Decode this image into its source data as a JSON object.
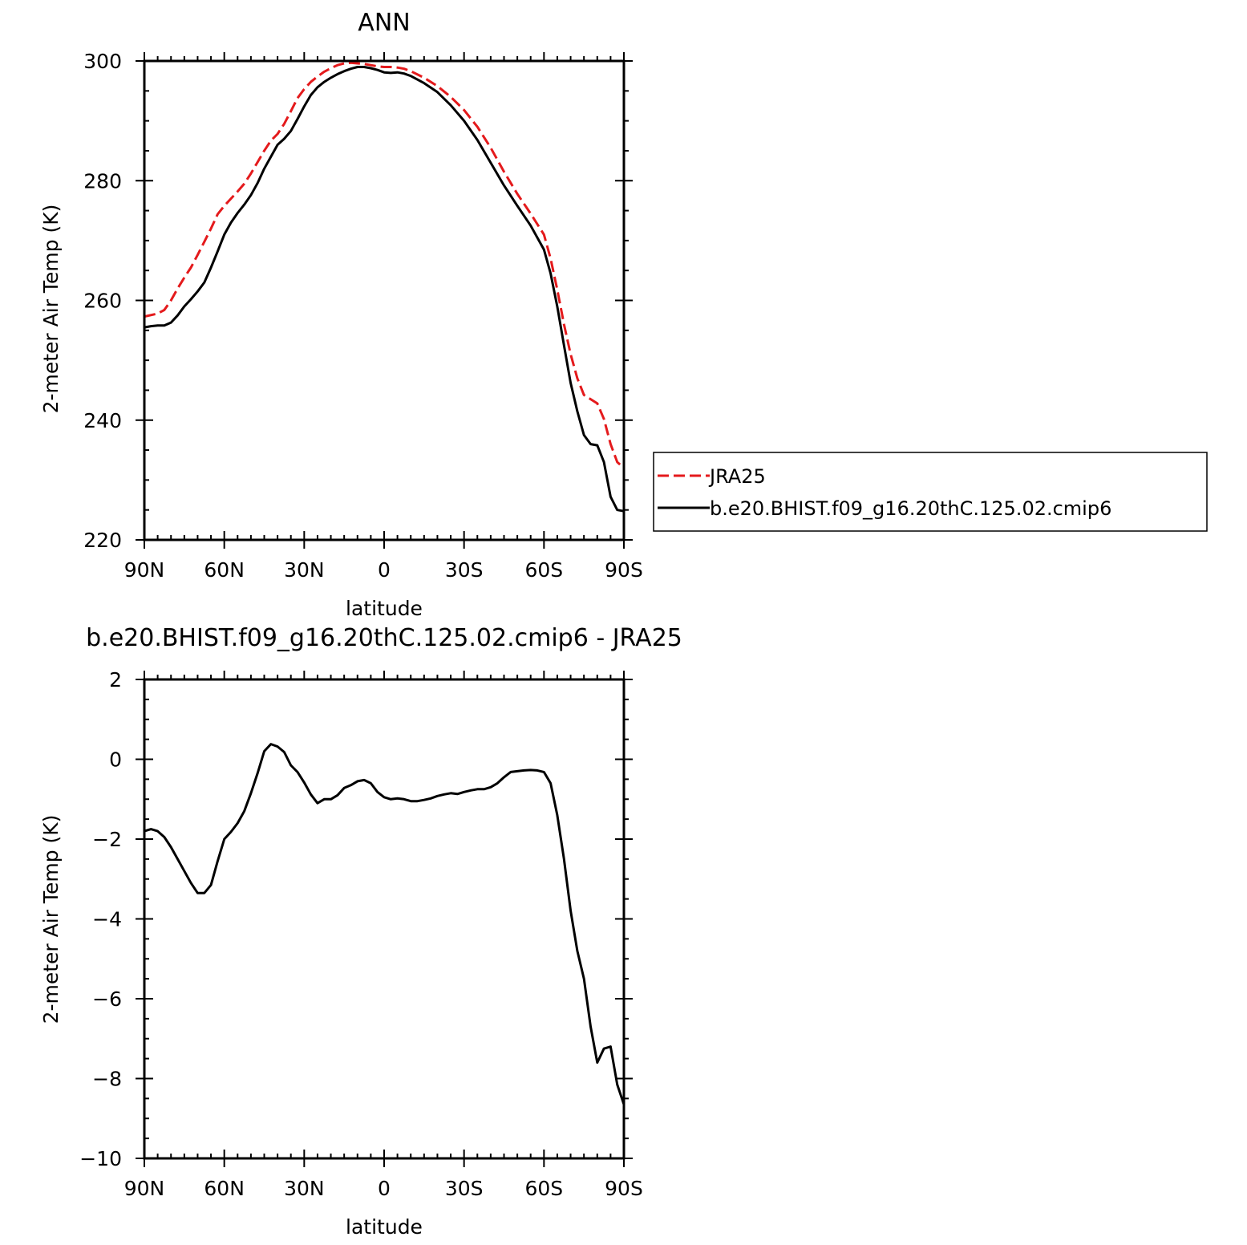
{
  "chart_data": [
    {
      "type": "line",
      "title": "ANN",
      "xlabel": "latitude",
      "ylabel": "2-meter Air Temp (K)",
      "xlim": [
        -90,
        90
      ],
      "ylim": [
        220,
        300
      ],
      "x_direction": "90N to 90S",
      "x_ticks": [
        {
          "value": -90,
          "label": "90N"
        },
        {
          "value": -60,
          "label": "60N"
        },
        {
          "value": -30,
          "label": "30N"
        },
        {
          "value": 0,
          "label": "0"
        },
        {
          "value": 30,
          "label": "30S"
        },
        {
          "value": 60,
          "label": "60S"
        },
        {
          "value": 90,
          "label": "90S"
        }
      ],
      "y_ticks": [
        220,
        240,
        260,
        280,
        300
      ],
      "legend_position": "right",
      "grid": false,
      "series": [
        {
          "name": "JRA25",
          "color": "#e41a1c",
          "dash": "dashed",
          "x": [
            -90,
            -85,
            -82.5,
            -80,
            -77.5,
            -75,
            -72.5,
            -70,
            -67.5,
            -65,
            -62.5,
            -60,
            -57.5,
            -55,
            -52.5,
            -50,
            -47.5,
            -45,
            -42.5,
            -40,
            -37.5,
            -35,
            -32.5,
            -30,
            -27.5,
            -25,
            -22.5,
            -20,
            -17.5,
            -15,
            -12.5,
            -10,
            -7.5,
            -5,
            -2.5,
            0,
            2.5,
            5,
            7.5,
            10,
            15,
            20,
            25,
            30,
            35,
            40,
            45,
            50,
            55,
            60,
            62.5,
            65,
            67.5,
            70,
            72.5,
            75,
            77.5,
            80,
            82.5,
            85,
            87.5,
            90
          ],
          "values": [
            257.3,
            257.8,
            258.4,
            260.0,
            262.0,
            263.8,
            265.5,
            267.6,
            269.8,
            272.0,
            274.4,
            275.8,
            277.0,
            278.2,
            279.5,
            281.2,
            283.1,
            285.0,
            286.7,
            287.8,
            289.5,
            291.6,
            293.8,
            295.3,
            296.5,
            297.4,
            298.2,
            298.8,
            299.3,
            299.6,
            299.7,
            299.6,
            299.5,
            299.3,
            299.1,
            299.0,
            299.0,
            298.9,
            298.7,
            298.3,
            297.2,
            295.8,
            294.0,
            291.8,
            289.0,
            285.5,
            281.5,
            277.8,
            274.5,
            271.0,
            267.0,
            261.8,
            256.0,
            251.0,
            247.0,
            244.2,
            243.5,
            242.8,
            240.2,
            236.0,
            233.0,
            232.0
          ]
        },
        {
          "name": "b.e20.BHIST.f09_g16.20thC.125.02.cmip6",
          "color": "#000000",
          "dash": "solid",
          "x": [
            -90,
            -87.5,
            -85,
            -82.5,
            -80,
            -77.5,
            -75,
            -72.5,
            -70,
            -67.5,
            -65,
            -62.5,
            -60,
            -57.5,
            -55,
            -52.5,
            -50,
            -47.5,
            -45,
            -42.5,
            -40,
            -37.5,
            -35,
            -32.5,
            -30,
            -27.5,
            -25,
            -22.5,
            -20,
            -17.5,
            -15,
            -12.5,
            -10,
            -7.5,
            -5,
            -2.5,
            0,
            2.5,
            5,
            7.5,
            10,
            15,
            20,
            25,
            30,
            35,
            40,
            45,
            50,
            55,
            60,
            62.5,
            65,
            67.5,
            70,
            72.5,
            75,
            77.5,
            80,
            82.5,
            85,
            87.5,
            90
          ],
          "values": [
            255.5,
            255.7,
            255.8,
            255.8,
            256.3,
            257.5,
            259.0,
            260.2,
            261.5,
            263.0,
            265.5,
            268.2,
            271.0,
            273.0,
            274.6,
            276.0,
            277.6,
            279.6,
            282.0,
            284.0,
            286.0,
            287.0,
            288.3,
            290.3,
            292.4,
            294.3,
            295.6,
            296.5,
            297.2,
            297.8,
            298.3,
            298.7,
            299.0,
            299.0,
            298.8,
            298.5,
            298.1,
            298.0,
            298.1,
            297.9,
            297.5,
            296.3,
            294.8,
            292.6,
            290.0,
            286.8,
            283.0,
            279.2,
            275.8,
            272.5,
            268.5,
            264.5,
            259.0,
            252.5,
            246.2,
            241.5,
            237.5,
            236.0,
            235.8,
            233.0,
            227.2,
            225.0,
            224.8
          ]
        }
      ]
    },
    {
      "type": "line",
      "title": "b.e20.BHIST.f09_g16.20thC.125.02.cmip6 - JRA25",
      "xlabel": "latitude",
      "ylabel": "2-meter Air Temp (K)",
      "xlim": [
        -90,
        90
      ],
      "ylim": [
        -10,
        2
      ],
      "x_direction": "90N to 90S",
      "x_ticks": [
        {
          "value": -90,
          "label": "90N"
        },
        {
          "value": -60,
          "label": "60N"
        },
        {
          "value": -30,
          "label": "30N"
        },
        {
          "value": 0,
          "label": "0"
        },
        {
          "value": 30,
          "label": "30S"
        },
        {
          "value": 60,
          "label": "60S"
        },
        {
          "value": 90,
          "label": "90S"
        }
      ],
      "y_ticks": [
        -10,
        -8,
        -6,
        -4,
        -2,
        0,
        2
      ],
      "grid": false,
      "series": [
        {
          "color": "#000000",
          "dash": "solid",
          "x": [
            -90,
            -87.5,
            -85,
            -82.5,
            -80,
            -77.5,
            -75,
            -72.5,
            -70,
            -67.5,
            -65,
            -62.5,
            -60,
            -57.5,
            -55,
            -52.5,
            -50,
            -47.5,
            -45,
            -42.5,
            -40,
            -37.5,
            -35,
            -32.5,
            -30,
            -27.5,
            -25,
            -22.5,
            -20,
            -17.5,
            -15,
            -12.5,
            -10,
            -7.5,
            -5,
            -2.5,
            0,
            2.5,
            5,
            7.5,
            10,
            12.5,
            15,
            17.5,
            20,
            22.5,
            25,
            27.5,
            30,
            32.5,
            35,
            37.5,
            40,
            42.5,
            45,
            47.5,
            50,
            52.5,
            55,
            57.5,
            60,
            62.5,
            65,
            67.5,
            70,
            72.5,
            75,
            77.5,
            80,
            82.5,
            85,
            87.5,
            90
          ],
          "values": [
            -1.8,
            -1.75,
            -1.8,
            -1.95,
            -2.2,
            -2.5,
            -2.8,
            -3.1,
            -3.35,
            -3.35,
            -3.15,
            -2.55,
            -2.0,
            -1.82,
            -1.6,
            -1.3,
            -0.85,
            -0.35,
            0.2,
            0.38,
            0.32,
            0.18,
            -0.15,
            -0.32,
            -0.58,
            -0.88,
            -1.1,
            -1.0,
            -1.0,
            -0.9,
            -0.72,
            -0.65,
            -0.55,
            -0.52,
            -0.6,
            -0.82,
            -0.95,
            -1.0,
            -0.98,
            -1.0,
            -1.05,
            -1.05,
            -1.02,
            -0.98,
            -0.92,
            -0.88,
            -0.85,
            -0.87,
            -0.82,
            -0.78,
            -0.75,
            -0.75,
            -0.7,
            -0.6,
            -0.45,
            -0.32,
            -0.3,
            -0.28,
            -0.27,
            -0.28,
            -0.32,
            -0.6,
            -1.4,
            -2.5,
            -3.8,
            -4.8,
            -5.5,
            -6.7,
            -7.6,
            -7.25,
            -7.2,
            -8.15,
            -8.65
          ]
        }
      ]
    }
  ]
}
